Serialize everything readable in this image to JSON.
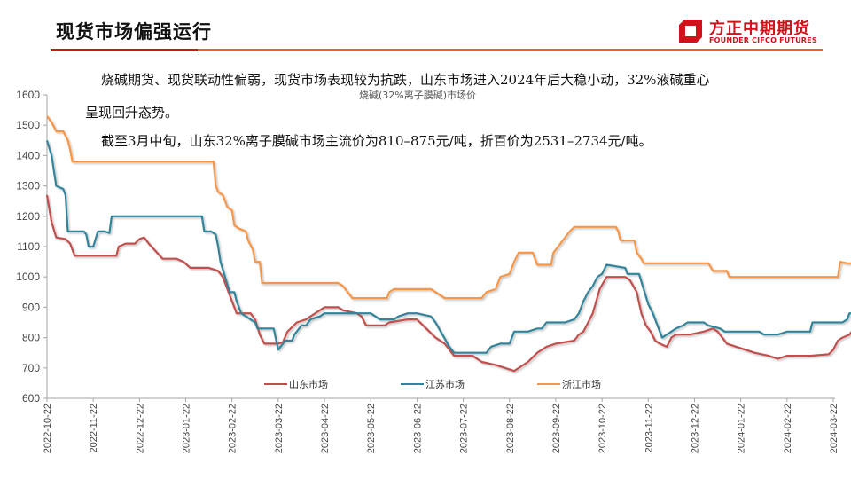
{
  "header": {
    "title": "现货市场偏强运行",
    "logo_cn": "方正中期期货",
    "logo_en": "FOUNDER CIFCO FUTURES",
    "colors": {
      "red": "#c8161d",
      "orange": "#e8622a"
    }
  },
  "body_text": {
    "para1_line1": "烧碱期货、现货联动性偏弱，现货市场表现较为抗跌，山东市场进入2024年后大稳小动，32%液碱重心",
    "para1_line2": "呈现回升态势。",
    "para2": "截至3月中旬，山东32%离子膜碱市场主流价为810–875元/吨，折百价为2531–2734元/吨。"
  },
  "chart_data": {
    "type": "line",
    "title": "烧碱(32%离子膜碱)市场价",
    "xlabel": "",
    "ylabel": "",
    "ylim": [
      600,
      1600
    ],
    "yticks": [
      600,
      700,
      800,
      900,
      1000,
      1100,
      1200,
      1300,
      1400,
      1500,
      1600
    ],
    "grid": false,
    "legend_position": "bottom-inside",
    "x_categories": [
      "2022-10-22",
      "2022-11-22",
      "2022-12-22",
      "2023-01-22",
      "2023-02-22",
      "2023-03-22",
      "2023-04-22",
      "2023-05-22",
      "2023-06-22",
      "2023-07-22",
      "2023-08-22",
      "2023-09-22",
      "2023-10-22",
      "2023-11-22",
      "2023-12-22",
      "2024-01-22",
      "2024-02-22",
      "2024-03-22"
    ],
    "x_note": "x values are month offsets from 2022-10-22",
    "series": [
      {
        "name": "山东市场",
        "color": "#c0504d",
        "points": [
          [
            0,
            1270
          ],
          [
            0.1,
            1180
          ],
          [
            0.2,
            1130
          ],
          [
            0.4,
            1125
          ],
          [
            0.5,
            1110
          ],
          [
            0.6,
            1070
          ],
          [
            1.0,
            1070
          ],
          [
            1.5,
            1070
          ],
          [
            1.55,
            1100
          ],
          [
            1.7,
            1110
          ],
          [
            1.9,
            1110
          ],
          [
            2.0,
            1125
          ],
          [
            2.1,
            1130
          ],
          [
            2.2,
            1110
          ],
          [
            2.35,
            1085
          ],
          [
            2.5,
            1060
          ],
          [
            2.8,
            1060
          ],
          [
            2.95,
            1050
          ],
          [
            3.1,
            1030
          ],
          [
            3.5,
            1030
          ],
          [
            3.7,
            1020
          ],
          [
            3.8,
            1000
          ],
          [
            3.9,
            960
          ],
          [
            4.0,
            920
          ],
          [
            4.1,
            880
          ],
          [
            4.4,
            880
          ],
          [
            4.5,
            860
          ],
          [
            4.6,
            810
          ],
          [
            4.7,
            780
          ],
          [
            5.0,
            780
          ],
          [
            5.1,
            785
          ],
          [
            5.2,
            820
          ],
          [
            5.4,
            850
          ],
          [
            5.6,
            860
          ],
          [
            5.8,
            880
          ],
          [
            5.9,
            890
          ],
          [
            6.0,
            900
          ],
          [
            6.3,
            900
          ],
          [
            6.4,
            890
          ],
          [
            6.7,
            880
          ],
          [
            6.8,
            870
          ],
          [
            6.9,
            840
          ],
          [
            7.3,
            840
          ],
          [
            7.4,
            850
          ],
          [
            7.8,
            860
          ],
          [
            8.0,
            860
          ],
          [
            8.2,
            830
          ],
          [
            8.4,
            800
          ],
          [
            8.6,
            780
          ],
          [
            8.8,
            740
          ],
          [
            9.2,
            740
          ],
          [
            9.4,
            720
          ],
          [
            9.7,
            710
          ],
          [
            10.1,
            690
          ],
          [
            10.2,
            700
          ],
          [
            10.4,
            720
          ],
          [
            10.6,
            750
          ],
          [
            10.8,
            770
          ],
          [
            11.0,
            780
          ],
          [
            11.4,
            790
          ],
          [
            11.5,
            810
          ],
          [
            11.6,
            820
          ],
          [
            11.8,
            880
          ],
          [
            11.95,
            960
          ],
          [
            12.1,
            1000
          ],
          [
            12.5,
            1000
          ],
          [
            12.6,
            990
          ],
          [
            12.75,
            950
          ],
          [
            12.85,
            880
          ],
          [
            12.95,
            840
          ],
          [
            13.05,
            820
          ],
          [
            13.15,
            790
          ],
          [
            13.25,
            780
          ],
          [
            13.4,
            770
          ],
          [
            13.5,
            800
          ],
          [
            13.6,
            810
          ],
          [
            13.9,
            810
          ],
          [
            14.2,
            820
          ],
          [
            14.4,
            830
          ],
          [
            14.5,
            820
          ],
          [
            14.6,
            800
          ],
          [
            14.7,
            780
          ],
          [
            14.9,
            770
          ],
          [
            15.1,
            760
          ],
          [
            15.3,
            750
          ],
          [
            15.6,
            740
          ],
          [
            15.8,
            730
          ],
          [
            16.0,
            740
          ],
          [
            16.5,
            740
          ],
          [
            16.9,
            745
          ],
          [
            17.0,
            760
          ],
          [
            17.1,
            790
          ],
          [
            17.2,
            800
          ],
          [
            17.35,
            810
          ],
          [
            17.45,
            830
          ],
          [
            17.5,
            840
          ]
        ]
      },
      {
        "name": "江苏市场",
        "color": "#31849b",
        "points": [
          [
            0,
            1450
          ],
          [
            0.1,
            1400
          ],
          [
            0.15,
            1350
          ],
          [
            0.2,
            1300
          ],
          [
            0.35,
            1290
          ],
          [
            0.4,
            1270
          ],
          [
            0.45,
            1150
          ],
          [
            0.8,
            1150
          ],
          [
            0.85,
            1140
          ],
          [
            0.9,
            1100
          ],
          [
            1.0,
            1100
          ],
          [
            1.1,
            1150
          ],
          [
            1.25,
            1150
          ],
          [
            1.35,
            1145
          ],
          [
            1.4,
            1200
          ],
          [
            1.5,
            1200
          ],
          [
            2.0,
            1200
          ],
          [
            3.0,
            1200
          ],
          [
            3.35,
            1200
          ],
          [
            3.4,
            1150
          ],
          [
            3.55,
            1150
          ],
          [
            3.65,
            1140
          ],
          [
            3.7,
            1100
          ],
          [
            3.75,
            1050
          ],
          [
            3.85,
            1000
          ],
          [
            3.95,
            950
          ],
          [
            4.05,
            950
          ],
          [
            4.1,
            920
          ],
          [
            4.2,
            880
          ],
          [
            4.4,
            860
          ],
          [
            4.5,
            850
          ],
          [
            4.55,
            830
          ],
          [
            4.9,
            830
          ],
          [
            5.0,
            760
          ],
          [
            5.05,
            770
          ],
          [
            5.15,
            790
          ],
          [
            5.3,
            790
          ],
          [
            5.35,
            810
          ],
          [
            5.5,
            840
          ],
          [
            5.6,
            840
          ],
          [
            5.7,
            860
          ],
          [
            5.9,
            870
          ],
          [
            6.0,
            880
          ],
          [
            6.5,
            880
          ],
          [
            6.8,
            880
          ],
          [
            7.0,
            880
          ],
          [
            7.2,
            860
          ],
          [
            7.5,
            860
          ],
          [
            7.6,
            870
          ],
          [
            7.8,
            880
          ],
          [
            8.0,
            880
          ],
          [
            8.3,
            870
          ],
          [
            8.4,
            850
          ],
          [
            8.55,
            810
          ],
          [
            8.7,
            770
          ],
          [
            8.8,
            750
          ],
          [
            9.0,
            750
          ],
          [
            9.5,
            750
          ],
          [
            9.6,
            770
          ],
          [
            9.8,
            780
          ],
          [
            10.0,
            780
          ],
          [
            10.1,
            820
          ],
          [
            10.4,
            820
          ],
          [
            10.6,
            830
          ],
          [
            10.7,
            830
          ],
          [
            10.8,
            850
          ],
          [
            11.2,
            850
          ],
          [
            11.4,
            860
          ],
          [
            11.5,
            880
          ],
          [
            11.6,
            920
          ],
          [
            11.7,
            950
          ],
          [
            11.8,
            970
          ],
          [
            11.9,
            1000
          ],
          [
            12.0,
            1010
          ],
          [
            12.1,
            1040
          ],
          [
            12.5,
            1030
          ],
          [
            12.55,
            1010
          ],
          [
            12.8,
            1010
          ],
          [
            12.9,
            960
          ],
          [
            13.0,
            910
          ],
          [
            13.1,
            880
          ],
          [
            13.15,
            860
          ],
          [
            13.25,
            820
          ],
          [
            13.3,
            800
          ],
          [
            13.4,
            810
          ],
          [
            13.6,
            830
          ],
          [
            13.75,
            840
          ],
          [
            13.85,
            850
          ],
          [
            14.2,
            850
          ],
          [
            14.3,
            840
          ],
          [
            14.55,
            830
          ],
          [
            14.65,
            820
          ],
          [
            15.0,
            820
          ],
          [
            15.4,
            820
          ],
          [
            15.5,
            810
          ],
          [
            15.8,
            810
          ],
          [
            15.9,
            815
          ],
          [
            16.0,
            820
          ],
          [
            16.5,
            820
          ],
          [
            16.55,
            850
          ],
          [
            16.9,
            850
          ],
          [
            17.2,
            850
          ],
          [
            17.3,
            860
          ],
          [
            17.35,
            880
          ],
          [
            17.5,
            880
          ]
        ]
      },
      {
        "name": "浙江市场",
        "color": "#f79646",
        "points": [
          [
            0,
            1530
          ],
          [
            0.1,
            1510
          ],
          [
            0.2,
            1480
          ],
          [
            0.35,
            1480
          ],
          [
            0.45,
            1450
          ],
          [
            0.5,
            1420
          ],
          [
            0.55,
            1380
          ],
          [
            1.0,
            1380
          ],
          [
            2.0,
            1380
          ],
          [
            3.0,
            1380
          ],
          [
            3.5,
            1380
          ],
          [
            3.6,
            1380
          ],
          [
            3.65,
            1300
          ],
          [
            3.7,
            1280
          ],
          [
            3.8,
            1270
          ],
          [
            3.9,
            1230
          ],
          [
            4.0,
            1220
          ],
          [
            4.05,
            1170
          ],
          [
            4.15,
            1160
          ],
          [
            4.3,
            1150
          ],
          [
            4.35,
            1120
          ],
          [
            4.45,
            1090
          ],
          [
            4.5,
            1050
          ],
          [
            4.6,
            1050
          ],
          [
            4.65,
            980
          ],
          [
            5.0,
            980
          ],
          [
            6.0,
            980
          ],
          [
            6.3,
            980
          ],
          [
            6.4,
            970
          ],
          [
            6.5,
            950
          ],
          [
            6.6,
            930
          ],
          [
            7.0,
            930
          ],
          [
            7.35,
            930
          ],
          [
            7.4,
            950
          ],
          [
            7.5,
            960
          ],
          [
            7.8,
            960
          ],
          [
            8.3,
            960
          ],
          [
            8.4,
            950
          ],
          [
            8.5,
            940
          ],
          [
            8.6,
            930
          ],
          [
            9.0,
            930
          ],
          [
            9.4,
            930
          ],
          [
            9.5,
            950
          ],
          [
            9.7,
            960
          ],
          [
            9.8,
            1000
          ],
          [
            10.0,
            1010
          ],
          [
            10.1,
            1050
          ],
          [
            10.2,
            1080
          ],
          [
            10.5,
            1080
          ],
          [
            10.6,
            1040
          ],
          [
            10.9,
            1040
          ],
          [
            10.95,
            1080
          ],
          [
            11.05,
            1100
          ],
          [
            11.15,
            1120
          ],
          [
            11.3,
            1150
          ],
          [
            11.4,
            1165
          ],
          [
            11.6,
            1165
          ],
          [
            12.0,
            1165
          ],
          [
            12.3,
            1165
          ],
          [
            12.35,
            1150
          ],
          [
            12.4,
            1120
          ],
          [
            12.7,
            1120
          ],
          [
            12.75,
            1080
          ],
          [
            12.85,
            1060
          ],
          [
            12.9,
            1045
          ],
          [
            13.2,
            1045
          ],
          [
            13.5,
            1045
          ],
          [
            14.0,
            1045
          ],
          [
            14.3,
            1045
          ],
          [
            14.4,
            1020
          ],
          [
            14.7,
            1020
          ],
          [
            14.75,
            1000
          ],
          [
            15.0,
            1000
          ],
          [
            15.5,
            1000
          ],
          [
            16.0,
            1000
          ],
          [
            16.5,
            1000
          ],
          [
            17.0,
            1000
          ],
          [
            17.1,
            1000
          ],
          [
            17.15,
            1050
          ],
          [
            17.3,
            1045
          ],
          [
            17.5,
            1045
          ]
        ]
      }
    ]
  }
}
